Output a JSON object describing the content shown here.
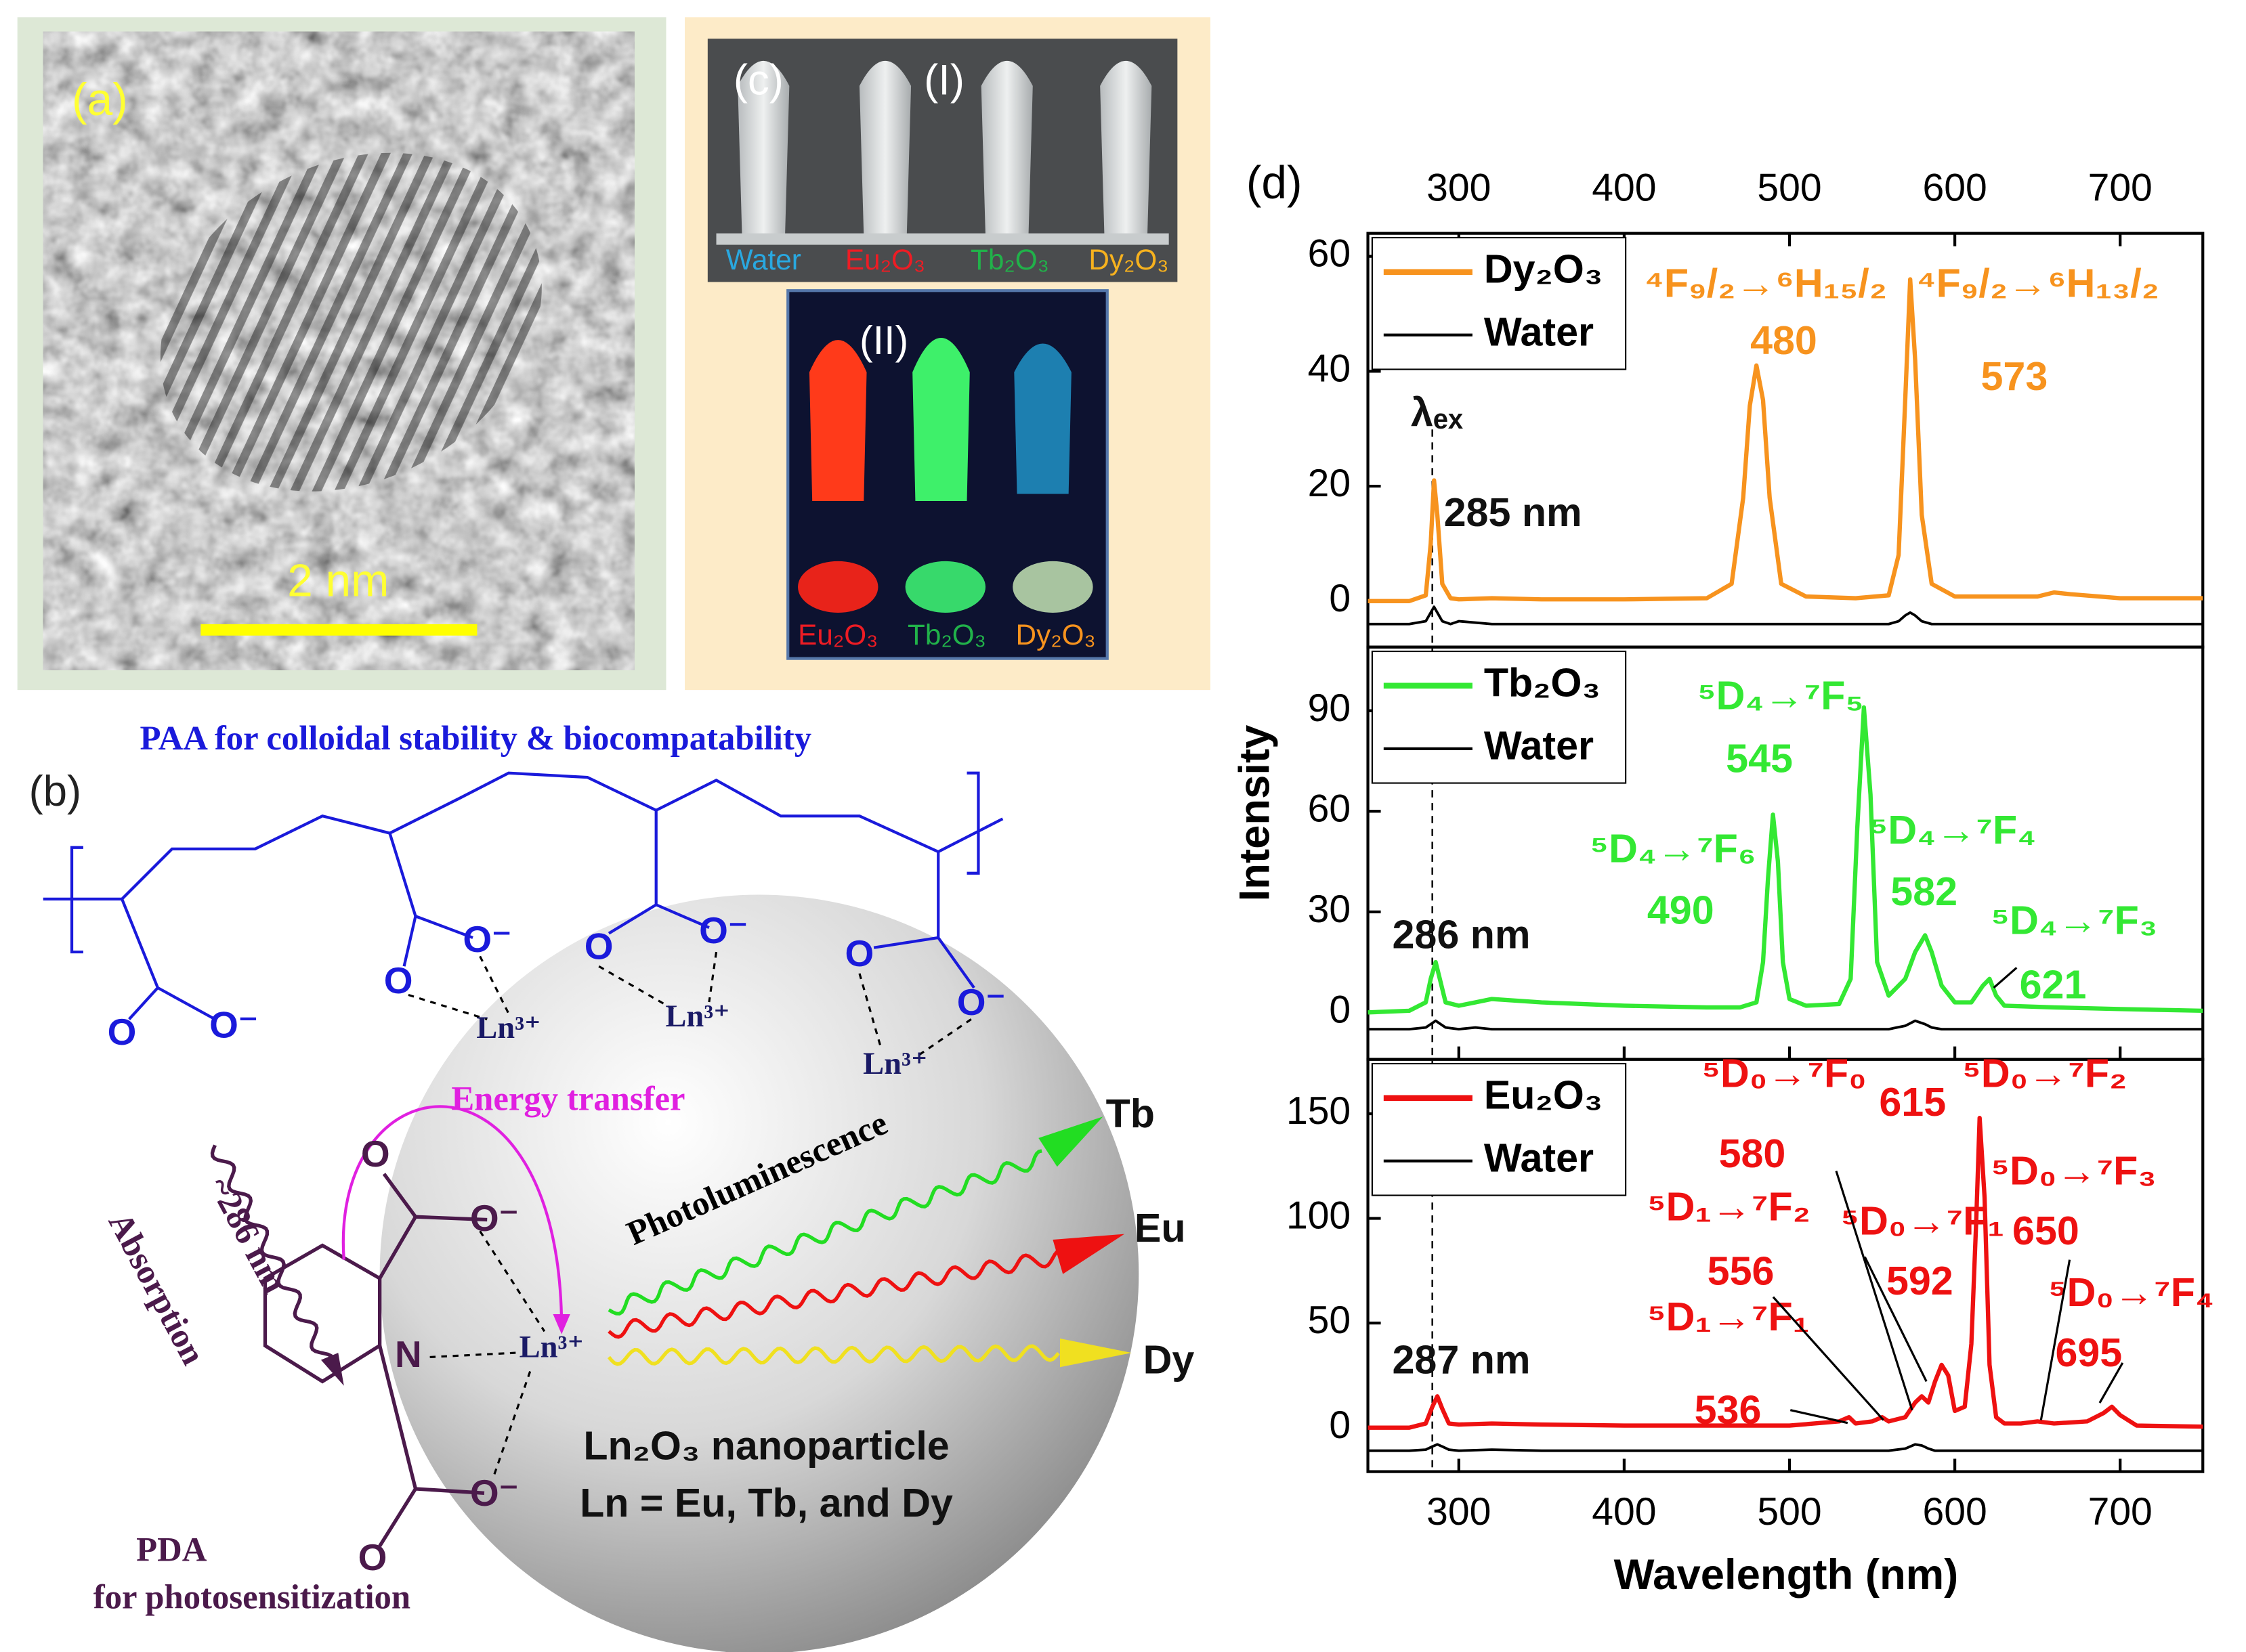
{
  "panel_a": {
    "label": "(a)",
    "scale_bar": "2 nm"
  },
  "panel_b": {
    "label": "(b)",
    "title": "PAA for colloidal stability & biocompatability",
    "atoms": [
      "O⁻",
      "O",
      "Ln³⁺",
      "O",
      "O⁻",
      "Ln³⁺",
      "O",
      "O⁻",
      "Ln³⁺",
      "O",
      "O⁻",
      "O",
      "O⁻",
      "N",
      "Ln³⁺",
      "O⁻",
      "O"
    ],
    "energy_transfer": "Energy transfer",
    "wavelength": "~286 nm",
    "absorption": "Absorption",
    "photoluminescence": "Photoluminescence",
    "emitters": [
      "Tb",
      "Eu",
      "Dy"
    ],
    "nanoparticle": "Ln₂O₃ nanoparticle",
    "lanthanides": "Ln = Eu, Tb, and Dy",
    "pda": "PDA",
    "pda_role": "for photosensitization"
  },
  "panel_c": {
    "label": "(c)",
    "photo_1": {
      "label": "(I)",
      "samples": [
        "Water",
        "Eu₂O₃",
        "Tb₂O₃",
        "Dy₂O₃"
      ]
    },
    "photo_2": {
      "label": "(II)",
      "samples": [
        "Eu₂O₃",
        "Tb₂O₃",
        "Dy₂O₃"
      ]
    }
  },
  "panel_d": {
    "label": "(d)"
  },
  "chart_data": [
    {
      "type": "line",
      "legend": "upper left",
      "xlim": [
        245,
        750
      ],
      "xticks": [
        300,
        400,
        500,
        600,
        700
      ],
      "ylim": [
        -8,
        64
      ],
      "yticks": [
        0,
        20,
        40,
        60
      ],
      "x": [
        245,
        270,
        280,
        283,
        285,
        287,
        290,
        295,
        300,
        320,
        350,
        400,
        450,
        465,
        472,
        476,
        480,
        484,
        488,
        495,
        510,
        540,
        560,
        566,
        570,
        573,
        576,
        580,
        586,
        600,
        650,
        660,
        670,
        700,
        750
      ],
      "series": [
        {
          "name": "Dy₂O₃",
          "color": "#f7931e",
          "values": [
            0,
            0,
            1,
            10,
            21,
            15,
            3,
            0.5,
            0.3,
            0.5,
            0.3,
            0.3,
            0.5,
            3,
            18,
            34,
            41,
            35,
            18,
            3,
            0.8,
            0.5,
            1,
            8,
            35,
            56,
            42,
            15,
            3,
            0.8,
            0.8,
            1.5,
            1.2,
            0.5,
            0.5
          ]
        },
        {
          "name": "Water",
          "color": "#000000",
          "values": [
            -4,
            -4,
            -3.5,
            -2,
            -1,
            -2,
            -3.5,
            -4,
            -3.5,
            -4,
            -4,
            -4,
            -4,
            -4,
            -4,
            -4,
            -4,
            -4,
            -4,
            -4,
            -4,
            -4,
            -4,
            -3.5,
            -2.5,
            -2,
            -2.5,
            -3.5,
            -4,
            -4,
            -4,
            -4,
            -4,
            -4,
            -4
          ]
        }
      ],
      "annotations": [
        "⁴F₉/₂→⁶H₁₅/₂",
        "480",
        "⁴F₉/₂→⁶H₁₃/₂",
        "573",
        "λₑₓ",
        "285 nm"
      ]
    },
    {
      "type": "line",
      "legend": "upper left",
      "xlim": [
        245,
        750
      ],
      "xticks": [
        300,
        400,
        500,
        600,
        700
      ],
      "ylim": [
        -14,
        109
      ],
      "yticks": [
        0,
        30,
        60,
        90
      ],
      "ylabel": "Intensity",
      "x": [
        245,
        270,
        280,
        283,
        286,
        289,
        292,
        300,
        310,
        320,
        350,
        400,
        450,
        470,
        480,
        484,
        487,
        490,
        493,
        496,
        500,
        510,
        530,
        537,
        541,
        545,
        549,
        553,
        560,
        570,
        576,
        582,
        586,
        592,
        600,
        610,
        617,
        621,
        625,
        630,
        660,
        700,
        750
      ],
      "series": [
        {
          "name": "Tb₂O₃",
          "color": "#33e833",
          "values": [
            0,
            0.5,
            3,
            10,
            15,
            9,
            3,
            2,
            3,
            4,
            3,
            2,
            1.5,
            1.5,
            3,
            15,
            40,
            59,
            45,
            15,
            4,
            2,
            2.5,
            10,
            55,
            91,
            65,
            15,
            5,
            10,
            18,
            23,
            18,
            8,
            3,
            3,
            8,
            10,
            5,
            2,
            1.5,
            1,
            0.5
          ]
        },
        {
          "name": "Water",
          "color": "#000000",
          "values": [
            -5,
            -5,
            -4.5,
            -3.5,
            -2.5,
            -3.5,
            -4.5,
            -5,
            -4.5,
            -5,
            -5,
            -5,
            -5,
            -5,
            -5,
            -5,
            -5,
            -5,
            -5,
            -5,
            -5,
            -5,
            -5,
            -5,
            -5,
            -5,
            -5,
            -5,
            -5,
            -4,
            -2.5,
            -3.5,
            -4.5,
            -5,
            -5,
            -5,
            -5,
            -5,
            -5,
            -5,
            -5,
            -5,
            -5
          ]
        }
      ],
      "annotations": [
        "⁵D₄→⁷F₅",
        "545",
        "⁵D₄→⁷F₆",
        "490",
        "⁵D₄→⁷F₄",
        "582",
        "⁵D₄→⁷F₃",
        "621",
        "286 nm"
      ]
    },
    {
      "type": "line",
      "legend": "upper left",
      "xlim": [
        245,
        750
      ],
      "xticks": [
        300,
        400,
        500,
        600,
        700
      ],
      "ylim": [
        -21,
        176
      ],
      "yticks": [
        0,
        50,
        100,
        150
      ],
      "xlabel": "Wavelength (nm)",
      "x": [
        245,
        270,
        280,
        284,
        287,
        290,
        294,
        300,
        320,
        350,
        400,
        450,
        500,
        530,
        536,
        540,
        550,
        556,
        560,
        570,
        576,
        580,
        584,
        588,
        592,
        596,
        600,
        606,
        610,
        613,
        615,
        618,
        621,
        625,
        630,
        640,
        650,
        660,
        680,
        690,
        695,
        700,
        710,
        750
      ],
      "series": [
        {
          "name": "Eu₂O₃",
          "color": "#ee1111",
          "values": [
            0,
            0,
            2,
            10,
            15,
            9,
            2,
            1.5,
            2,
            1.5,
            1,
            1,
            1,
            3,
            5,
            2,
            3,
            5,
            3,
            5,
            12,
            15,
            12,
            22,
            30,
            25,
            8,
            10,
            40,
            100,
            148,
            110,
            30,
            5,
            2,
            2,
            3,
            2,
            3,
            7,
            10,
            6,
            1,
            0.5
          ]
        },
        {
          "name": "Water",
          "color": "#000000",
          "values": [
            -11,
            -11,
            -10.5,
            -9,
            -8,
            -9,
            -10.5,
            -11,
            -10.5,
            -11,
            -11,
            -11,
            -11,
            -11,
            -11,
            -11,
            -11,
            -11,
            -11,
            -10,
            -8,
            -8.5,
            -10,
            -11,
            -11,
            -11,
            -11,
            -11,
            -11,
            -11,
            -11,
            -11,
            -11,
            -11,
            -11,
            -11,
            -11,
            -11,
            -11,
            -11,
            -11,
            -11,
            -11,
            -11
          ]
        }
      ],
      "annotations": [
        "⁵D₀→⁷F₀",
        "580",
        "615",
        "⁵D₀→⁷F₂",
        "⁵D₀→⁷F₃",
        "650",
        "⁵D₁→⁷F₂",
        "556",
        "⁵D₀→⁷F₁",
        "592",
        "⁵D₀→⁷F₄",
        "695",
        "⁵D₁→⁷F₁",
        "536",
        "287 nm"
      ]
    }
  ]
}
